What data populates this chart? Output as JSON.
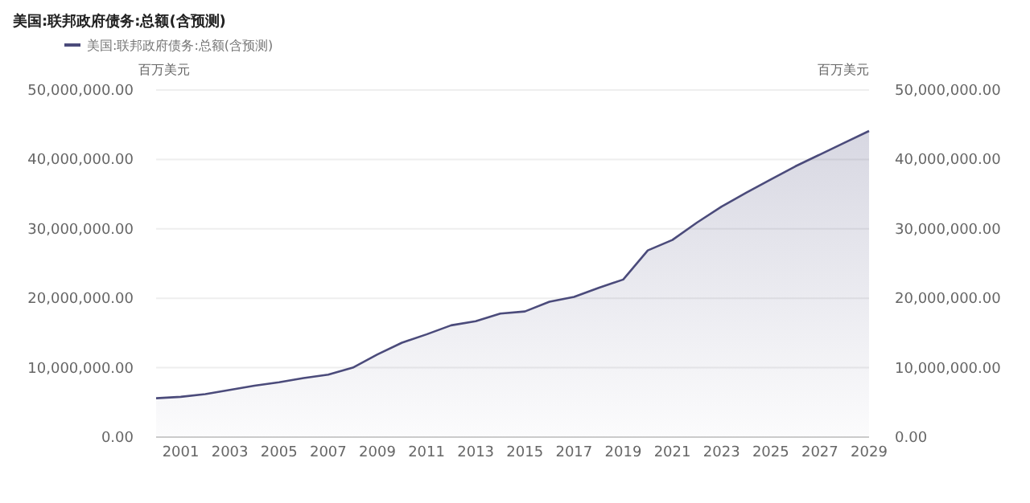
{
  "chart_data": {
    "type": "area",
    "title": "美国:联邦政府债务:总额(含预测)",
    "ylabel": "百万美元",
    "y2label": "百万美元",
    "x": [
      2000,
      2001,
      2002,
      2003,
      2004,
      2005,
      2006,
      2007,
      2008,
      2009,
      2010,
      2011,
      2012,
      2013,
      2014,
      2015,
      2016,
      2017,
      2018,
      2019,
      2020,
      2021,
      2022,
      2023,
      2024,
      2025,
      2026,
      2027,
      2028,
      2029
    ],
    "series": [
      {
        "name": "美国:联邦政府债务:总额(含预测)",
        "color": "#4b4b7b",
        "values": [
          5600000,
          5800000,
          6200000,
          6800000,
          7400000,
          7900000,
          8500000,
          9000000,
          10000000,
          11900000,
          13600000,
          14800000,
          16100000,
          16700000,
          17800000,
          18100000,
          19500000,
          20200000,
          21500000,
          22700000,
          26900000,
          28400000,
          30900000,
          33200000,
          35200000,
          37100000,
          39000000,
          40700000,
          42400000,
          44100000
        ]
      }
    ],
    "xlim": [
      2000,
      2029
    ],
    "xticks": [
      2001,
      2003,
      2005,
      2007,
      2009,
      2011,
      2013,
      2015,
      2017,
      2019,
      2021,
      2023,
      2025,
      2027,
      2029
    ],
    "ylim": [
      0,
      50000000
    ],
    "yticks": [
      {
        "value": 0,
        "label": "0.00"
      },
      {
        "value": 10000000,
        "label": "10,000,000.00"
      },
      {
        "value": 20000000,
        "label": "20,000,000.00"
      },
      {
        "value": 30000000,
        "label": "30,000,000.00"
      },
      {
        "value": 40000000,
        "label": "40,000,000.00"
      },
      {
        "value": 50000000,
        "label": "50,000,000.00"
      }
    ],
    "y2lim": [
      0,
      50000000
    ],
    "y2ticks": [
      {
        "value": 0,
        "label": "0.00"
      },
      {
        "value": 10000000,
        "label": "10,000,000.00"
      },
      {
        "value": 20000000,
        "label": "20,000,000.00"
      },
      {
        "value": 30000000,
        "label": "30,000,000.00"
      },
      {
        "value": 40000000,
        "label": "40,000,000.00"
      },
      {
        "value": 50000000,
        "label": "50,000,000.00"
      }
    ],
    "grid": "y",
    "legend": "top left"
  }
}
